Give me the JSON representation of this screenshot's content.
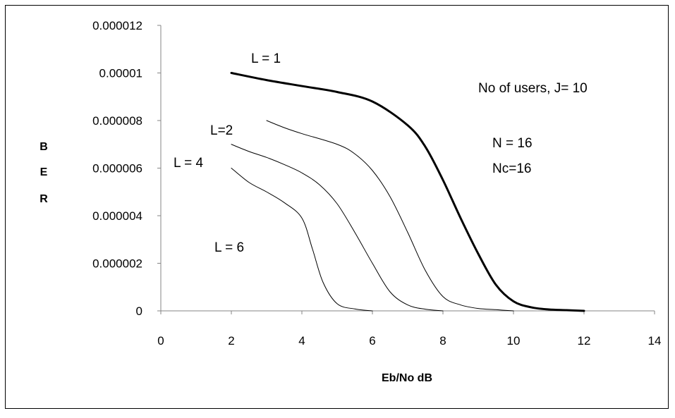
{
  "chart_data": {
    "type": "line",
    "title": "",
    "xlabel": "Eb/No dB",
    "ylabel": [
      "B",
      "E",
      "R"
    ],
    "xlim": [
      0,
      14
    ],
    "ylim": [
      0,
      1.2e-05
    ],
    "x_ticks": [
      "0",
      "2",
      "4",
      "6",
      "8",
      "10",
      "12",
      "14"
    ],
    "y_ticks": [
      "0",
      "0.000002",
      "0.000004",
      "0.000006",
      "0.000008",
      "0.00001",
      "0.000012"
    ],
    "grid": false,
    "legend": "none",
    "series": [
      {
        "name": "L  = 1",
        "bold": true,
        "color": "#000000",
        "points": [
          [
            2,
            1e-05
          ],
          [
            3,
            9.7e-06
          ],
          [
            4,
            9.45e-06
          ],
          [
            5,
            9.2e-06
          ],
          [
            6,
            8.8e-06
          ],
          [
            7,
            7.8e-06
          ],
          [
            7.5,
            6.9e-06
          ],
          [
            8,
            5.5e-06
          ],
          [
            8.5,
            3.9e-06
          ],
          [
            9,
            2.4e-06
          ],
          [
            9.5,
            1.1e-06
          ],
          [
            10,
            4e-07
          ],
          [
            10.5,
            1.5e-07
          ],
          [
            11,
            6e-08
          ],
          [
            11.5,
            3e-08
          ],
          [
            12,
            0
          ]
        ]
      },
      {
        "name": "L=2",
        "bold": false,
        "color": "#000000",
        "points": [
          [
            3,
            8e-06
          ],
          [
            3.5,
            7.7e-06
          ],
          [
            4,
            7.45e-06
          ],
          [
            5,
            7e-06
          ],
          [
            5.5,
            6.6e-06
          ],
          [
            6,
            5.9e-06
          ],
          [
            6.5,
            4.8e-06
          ],
          [
            7,
            3.3e-06
          ],
          [
            7.5,
            1.7e-06
          ],
          [
            8,
            6e-07
          ],
          [
            8.5,
            2.5e-07
          ],
          [
            9,
            1e-07
          ],
          [
            9.5,
            5e-08
          ],
          [
            10,
            0
          ]
        ]
      },
      {
        "name": "L = 4",
        "bold": false,
        "color": "#000000",
        "points": [
          [
            2,
            7e-06
          ],
          [
            2.5,
            6.7e-06
          ],
          [
            3,
            6.45e-06
          ],
          [
            3.5,
            6.15e-06
          ],
          [
            4,
            5.8e-06
          ],
          [
            4.5,
            5.3e-06
          ],
          [
            5,
            4.5e-06
          ],
          [
            5.5,
            3.3e-06
          ],
          [
            6,
            2e-06
          ],
          [
            6.5,
            8e-07
          ],
          [
            7,
            2.5e-07
          ],
          [
            7.5,
            7e-08
          ],
          [
            8,
            0
          ]
        ]
      },
      {
        "name": "L = 6",
        "bold": false,
        "color": "#000000",
        "points": [
          [
            2,
            6e-06
          ],
          [
            2.5,
            5.4e-06
          ],
          [
            3,
            5e-06
          ],
          [
            3.5,
            4.55e-06
          ],
          [
            4,
            3.9e-06
          ],
          [
            4.3,
            2.6e-06
          ],
          [
            4.6,
            1.2e-06
          ],
          [
            5,
            3e-07
          ],
          [
            5.5,
            8e-08
          ],
          [
            6,
            0
          ]
        ]
      }
    ],
    "annotations": {
      "users": "No of users, J= 10",
      "n": "N = 16",
      "nc": "Nc=16"
    }
  }
}
